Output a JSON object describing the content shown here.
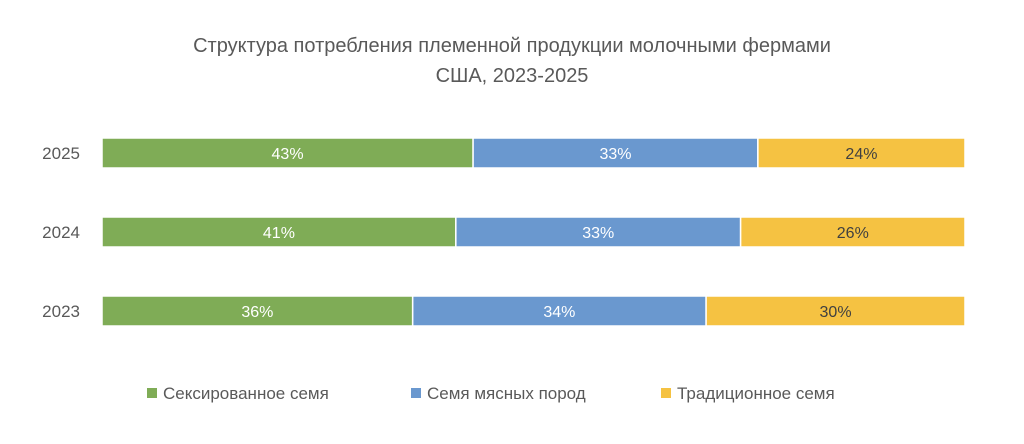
{
  "chart_data": {
    "type": "bar",
    "orientation": "horizontal",
    "stacked": "100%",
    "title": [
      "Структура потребления племенной продукции молочными фермами",
      "США, 2023-2025"
    ],
    "categories": [
      "2025",
      "2024",
      "2023"
    ],
    "series": [
      {
        "name": "Сексированное семя",
        "color": "#7FAC56",
        "label_color": "#ffffff",
        "values": [
          43,
          41,
          36
        ]
      },
      {
        "name": "Семя мясных пород",
        "color": "#6A98CF",
        "label_color": "#ffffff",
        "values": [
          33,
          33,
          34
        ]
      },
      {
        "name": "Традиционное семя",
        "color": "#F5C242",
        "label_color": "#404040",
        "values": [
          24,
          26,
          30
        ]
      }
    ],
    "value_suffix": "%",
    "xlim": [
      0,
      100
    ],
    "grid": false,
    "legend_position": "bottom"
  }
}
